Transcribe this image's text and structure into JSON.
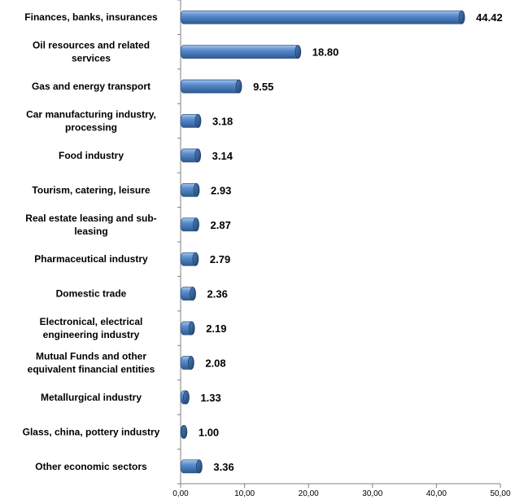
{
  "chart_data": {
    "type": "bar",
    "orientation": "horizontal",
    "categories": [
      [
        "Finances, banks, insurances"
      ],
      [
        "Oil resources and related",
        "services"
      ],
      [
        "Gas and energy transport"
      ],
      [
        "Car manufacturing industry,",
        "processing"
      ],
      [
        "Food industry"
      ],
      [
        "Tourism, catering, leisure"
      ],
      [
        "Real estate leasing and sub-",
        "leasing"
      ],
      [
        "Pharmaceutical industry"
      ],
      [
        "Domestic trade"
      ],
      [
        "Electronical, electrical",
        "engineering industry"
      ],
      [
        "Mutual Funds and other",
        "equivalent financial entities"
      ],
      [
        "Metallurgical industry"
      ],
      [
        "Glass, china, pottery industry"
      ],
      [
        "Other economic sectors"
      ]
    ],
    "values": [
      44.42,
      18.8,
      9.55,
      3.18,
      3.14,
      2.93,
      2.87,
      2.79,
      2.36,
      2.19,
      2.08,
      1.33,
      1.0,
      3.36
    ],
    "value_labels": [
      "44.42",
      "18.80",
      "9.55",
      "3.18",
      "3.14",
      "2.93",
      "2.87",
      "2.79",
      "2.36",
      "2.19",
      "2.08",
      "1.33",
      "1.00",
      "3.36"
    ],
    "xlim": [
      0,
      50
    ],
    "xticks": [
      0,
      10,
      20,
      30,
      40,
      50
    ],
    "xtick_labels": [
      "0,00",
      "10,00",
      "20,00",
      "30,00",
      "40,00",
      "50,00"
    ],
    "grid": false,
    "legend": "none",
    "colors": {
      "bar": "#4f81bd",
      "bar_dark": "#2e5a8f",
      "bar_light": "#8db3e2",
      "axis": "#808080"
    }
  }
}
